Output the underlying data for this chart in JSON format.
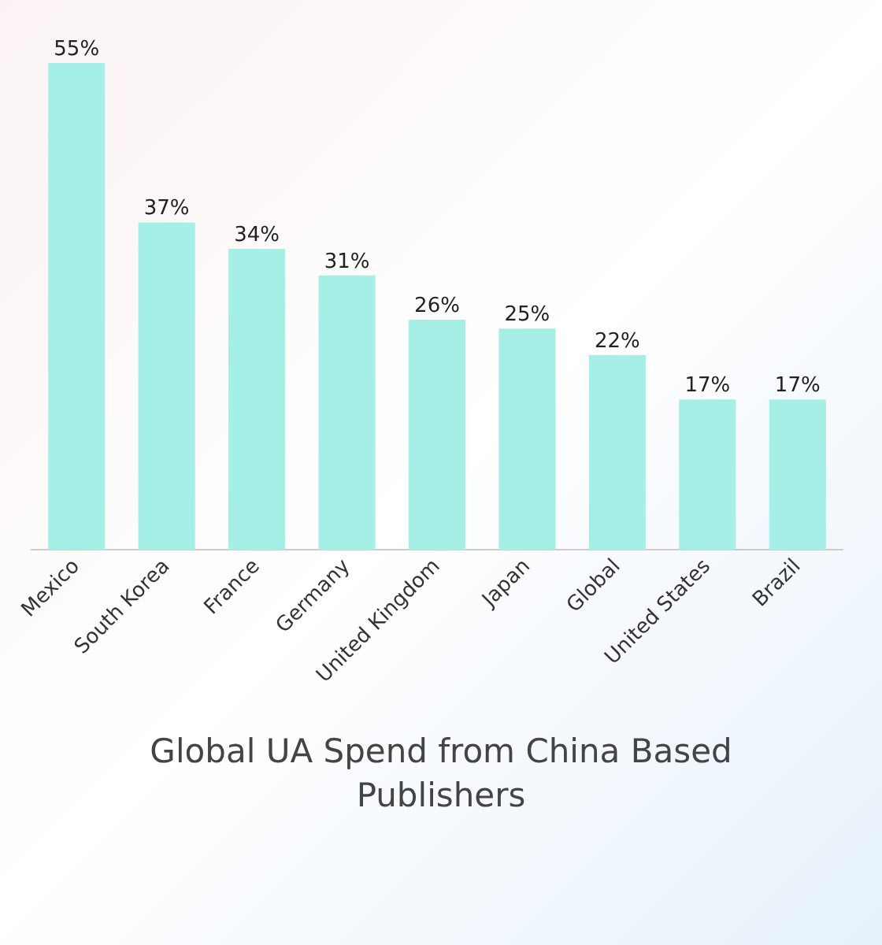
{
  "chart_data": {
    "type": "bar",
    "title": "Global UA Spend from China Based Publishers",
    "categories": [
      "Mexico",
      "South Korea",
      "France",
      "Germany",
      "United Kingdom",
      "Japan",
      "Global",
      "United States",
      "Brazil"
    ],
    "values": [
      55,
      37,
      34,
      31,
      26,
      25,
      22,
      17,
      17
    ],
    "value_labels": [
      "55%",
      "37%",
      "34%",
      "31%",
      "26%",
      "25%",
      "22%",
      "17%",
      "17%"
    ],
    "color": "#a6efe6",
    "grid": false,
    "legend": false,
    "tick_labels": "x"
  }
}
